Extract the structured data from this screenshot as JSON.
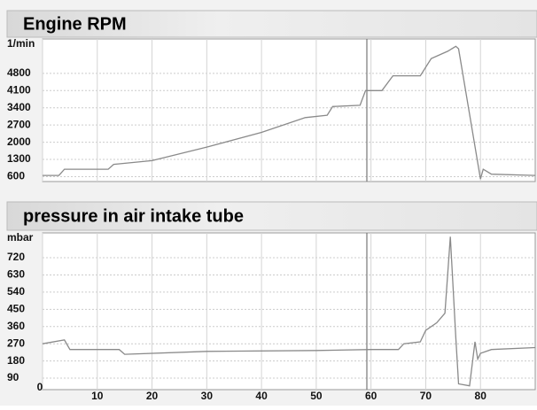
{
  "chart_data": [
    {
      "type": "line",
      "title": "Engine RPM",
      "ylabel": "1/min",
      "color": "#8a8a8a",
      "x": [
        0,
        3,
        4,
        12,
        13,
        20,
        30,
        40,
        48,
        52,
        53,
        58,
        59,
        62,
        64,
        69,
        71,
        74,
        75.5,
        76,
        80,
        80.5,
        82,
        90
      ],
      "values": [
        650,
        650,
        900,
        900,
        1100,
        1250,
        1800,
        2400,
        3000,
        3100,
        3450,
        3500,
        4100,
        4100,
        4700,
        4700,
        5400,
        5700,
        5900,
        5800,
        500,
        900,
        700,
        650
      ],
      "xlim": [
        0,
        90
      ],
      "xticks": [
        0,
        10,
        20,
        30,
        40,
        50,
        60,
        70,
        80
      ],
      "ylim": [
        400,
        6200
      ],
      "yticks": [
        600,
        1300,
        2000,
        2700,
        3400,
        4100,
        4800
      ],
      "grid": true
    },
    {
      "type": "line",
      "title": "pressure in air intake tube",
      "ylabel": "mbar",
      "color": "#8a8a8a",
      "x": [
        0,
        4,
        5,
        14,
        15,
        30,
        50,
        60,
        65,
        66,
        69,
        70,
        72,
        73.5,
        74.5,
        75.5,
        76,
        78,
        79,
        79.5,
        80,
        82,
        90
      ],
      "values": [
        270,
        290,
        240,
        240,
        215,
        230,
        235,
        240,
        240,
        270,
        280,
        340,
        380,
        430,
        830,
        300,
        60,
        50,
        280,
        190,
        220,
        240,
        250
      ],
      "xlim": [
        0,
        90
      ],
      "xticks": [
        0,
        10,
        20,
        30,
        40,
        50,
        60,
        70,
        80
      ],
      "ylim": [
        30,
        850
      ],
      "yticks": [
        90,
        180,
        270,
        360,
        450,
        540,
        630,
        720
      ],
      "grid": true
    }
  ]
}
